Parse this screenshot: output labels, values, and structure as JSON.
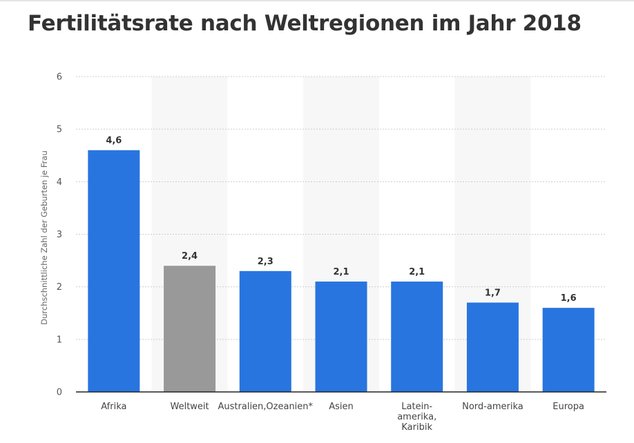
{
  "chart_data": {
    "type": "bar",
    "title": "Fertilitätsrate nach Weltregionen im Jahr 2018",
    "xlabel": "",
    "ylabel": "Durchschnittliche Zahl der Geburten je Frau",
    "ylim": [
      0,
      6
    ],
    "yticks": [
      "0",
      "1",
      "2",
      "3",
      "4",
      "5",
      "6"
    ],
    "grid": true,
    "categories": [
      [
        "Afrika"
      ],
      [
        "Weltweit"
      ],
      [
        "Australien,Ozeanien*"
      ],
      [
        "Asien"
      ],
      [
        "Latein-",
        "amerika,",
        "Karibik"
      ],
      [
        "Nord-amerika"
      ],
      [
        "Europa"
      ]
    ],
    "values": [
      4.6,
      2.4,
      2.3,
      2.1,
      2.1,
      1.7,
      1.6
    ],
    "value_labels": [
      "4,6",
      "2,4",
      "2,3",
      "2,1",
      "2,1",
      "1,7",
      "1,6"
    ],
    "highlight_index": 1,
    "colors": {
      "bar": "#2875e0",
      "highlight": "#999999",
      "band": "#f7f7f7",
      "grid": "#cccccc",
      "axis": "#222222"
    }
  }
}
